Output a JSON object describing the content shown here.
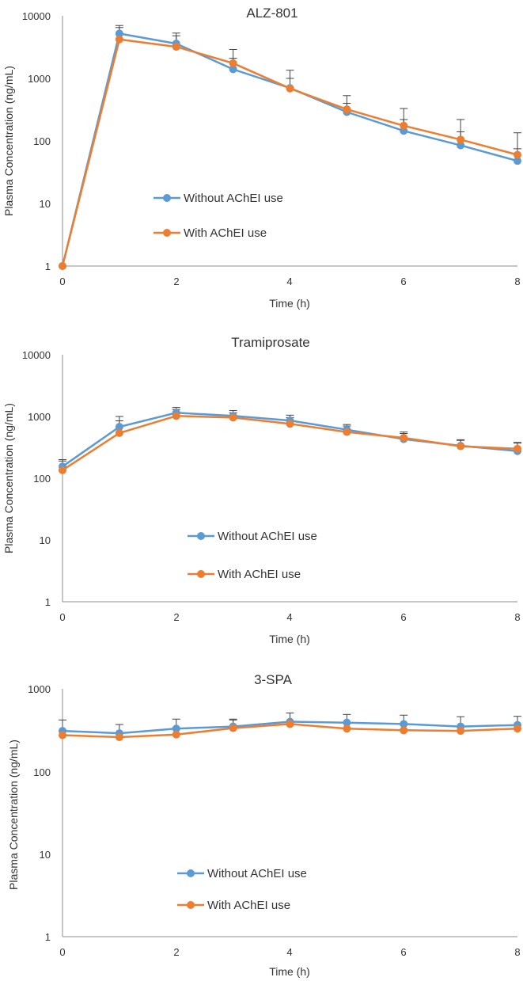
{
  "colors": {
    "without": "#5b9bd5",
    "with": "#ed7d31",
    "axis": "#8c8c8c",
    "text": "#333333"
  },
  "chart_data": [
    {
      "type": "line",
      "title": "ALZ-801",
      "xlabel": "Time (h)",
      "ylabel": "Plasma Concentration (ng/mL)",
      "yscale": "log",
      "x": [
        0,
        1,
        2,
        3,
        4,
        5,
        6,
        7,
        8
      ],
      "xticks": [
        "0",
        "2",
        "4",
        "6",
        "8"
      ],
      "xlim": [
        0,
        8
      ],
      "ylim": [
        1,
        10000
      ],
      "yticks": [
        "1",
        "10",
        "100",
        "1000",
        "10000"
      ],
      "series": [
        {
          "name": "Without AChEI use",
          "color_key": "without",
          "values": [
            1,
            5200,
            3600,
            1400,
            700,
            290,
            145,
            85,
            48
          ],
          "error_upper": [
            null,
            7000,
            4800,
            2100,
            1000,
            400,
            220,
            140,
            75
          ]
        },
        {
          "name": "With AChEI use",
          "color_key": "with",
          "values": [
            1,
            4200,
            3200,
            1750,
            690,
            320,
            175,
            105,
            60
          ],
          "error_upper": [
            null,
            6500,
            5300,
            2900,
            1350,
            530,
            330,
            220,
            135
          ]
        }
      ]
    },
    {
      "type": "line",
      "title": "Tramiprosate",
      "xlabel": "Time (h)",
      "ylabel": "Plasma Concentration (ng/mL)",
      "yscale": "log",
      "x": [
        0,
        1,
        2,
        3,
        4,
        5,
        6,
        7,
        8
      ],
      "xticks": [
        "0",
        "2",
        "4",
        "6",
        "8"
      ],
      "xlim": [
        0,
        8
      ],
      "ylim": [
        1,
        10000
      ],
      "yticks": [
        "1",
        "10",
        "100",
        "1000",
        "10000"
      ],
      "series": [
        {
          "name": "Without AChEI use",
          "color_key": "without",
          "values": [
            155,
            680,
            1150,
            1020,
            860,
            610,
            430,
            335,
            275
          ],
          "error_upper": [
            200,
            1000,
            1400,
            1250,
            1050,
            740,
            530,
            410,
            380
          ]
        },
        {
          "name": "With AChEI use",
          "color_key": "with",
          "values": [
            135,
            540,
            1020,
            960,
            760,
            560,
            450,
            330,
            300
          ],
          "error_upper": [
            190,
            850,
            1300,
            1150,
            960,
            700,
            560,
            420,
            370
          ]
        }
      ]
    },
    {
      "type": "line",
      "title": "3-SPA",
      "xlabel": "Time (h)",
      "ylabel": "Plasma Concentration (ng/mL)",
      "yscale": "log",
      "x": [
        0,
        1,
        2,
        3,
        4,
        5,
        6,
        7,
        8
      ],
      "xticks": [
        "0",
        "2",
        "4",
        "6",
        "8"
      ],
      "xlim": [
        0,
        8
      ],
      "ylim": [
        1,
        1000
      ],
      "yticks": [
        "1",
        "10",
        "100",
        "1000"
      ],
      "series": [
        {
          "name": "Without AChEI use",
          "color_key": "without",
          "values": [
            310,
            290,
            330,
            350,
            400,
            390,
            375,
            350,
            365
          ],
          "error_upper": [
            420,
            370,
            430,
            430,
            510,
            490,
            480,
            460,
            465
          ]
        },
        {
          "name": "With AChEI use",
          "color_key": "with",
          "values": [
            275,
            260,
            280,
            335,
            375,
            330,
            315,
            310,
            330
          ],
          "error_upper": [
            null,
            null,
            null,
            420,
            null,
            null,
            null,
            null,
            null
          ]
        }
      ]
    }
  ]
}
